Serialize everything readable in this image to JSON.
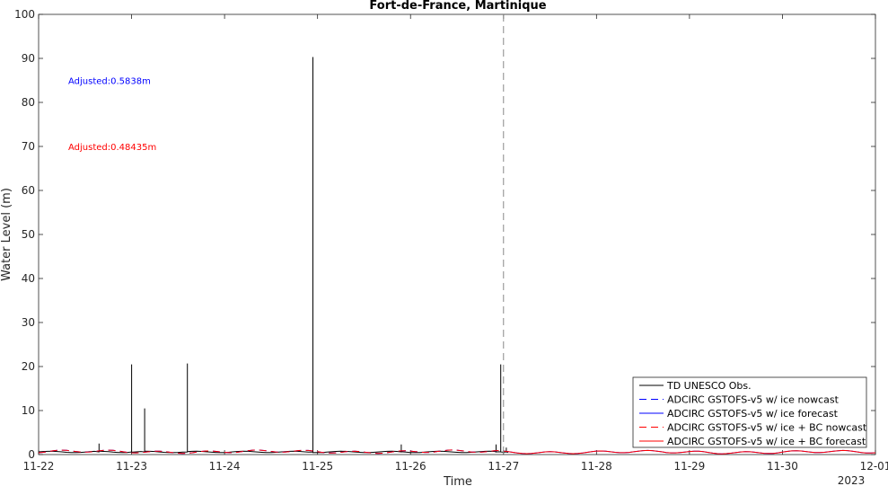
{
  "chart_data": {
    "type": "line",
    "title": "Fort-de-France, Martinique",
    "xlabel": "Time",
    "ylabel": "Water Level (m)",
    "x_tick_labels": [
      "11-22",
      "11-23",
      "11-24",
      "11-25",
      "11-26",
      "11-27",
      "11-28",
      "11-29",
      "11-30",
      "12-01"
    ],
    "x_year_label": "2023",
    "xlim_days": [
      22,
      31
    ],
    "ylim": [
      0,
      100
    ],
    "y_ticks": [
      0,
      10,
      20,
      30,
      40,
      50,
      60,
      70,
      80,
      90,
      100
    ],
    "grid": false,
    "legend_placement": "bottom-right",
    "forecast_start": "11-27",
    "annotations": [
      {
        "text": "Adjusted:0.5838m",
        "color": "#0000ff",
        "y": 85
      },
      {
        "text": "Adjusted:0.48435m",
        "color": "#ff0000",
        "y": 70
      }
    ],
    "series": [
      {
        "name": "TD UNESCO Obs.",
        "color": "#000000",
        "dash": "solid",
        "baseline": 0.6,
        "end_day": 27.1,
        "spikes": [
          {
            "day": 22.65,
            "value": 2.5
          },
          {
            "day": 23.0,
            "value": 20.5
          },
          {
            "day": 23.14,
            "value": 10.5
          },
          {
            "day": 23.6,
            "value": 20.7
          },
          {
            "day": 24.95,
            "value": 90.3
          },
          {
            "day": 25.9,
            "value": 2.3
          },
          {
            "day": 26.92,
            "value": 2.3
          },
          {
            "day": 26.97,
            "value": 20.5
          },
          {
            "day": 27.03,
            "value": 1.6
          }
        ]
      },
      {
        "name": "ADCIRC GSTOFS-v5 w/ ice nowcast",
        "color": "#0000ff",
        "dash": "dashed",
        "start_day": 22,
        "end_day": 27
      },
      {
        "name": "ADCIRC GSTOFS-v5 w/ ice forecast",
        "color": "#0000ff",
        "dash": "solid",
        "start_day": 27,
        "end_day": 31
      },
      {
        "name": "ADCIRC GSTOFS-v5 w/ ice + BC nowcast",
        "color": "#ff0000",
        "dash": "dashed",
        "start_day": 22,
        "end_day": 27
      },
      {
        "name": "ADCIRC GSTOFS-v5 w/ ice + BC forecast",
        "color": "#ff0000",
        "dash": "solid",
        "start_day": 27,
        "end_day": 31
      }
    ]
  }
}
